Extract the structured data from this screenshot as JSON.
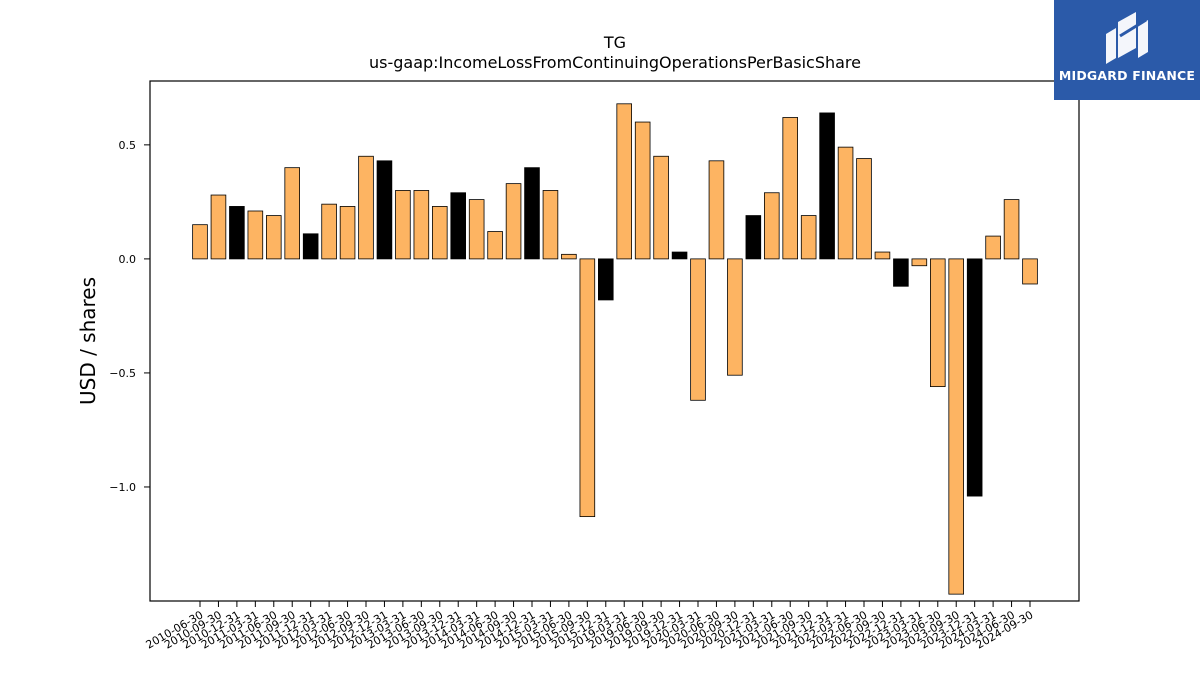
{
  "chart_data": {
    "type": "bar",
    "title": "TG",
    "subtitle": "us-gaap:IncomeLossFromContinuingOperationsPerBasicShare",
    "ylabel": "USD / shares",
    "xlabel": "",
    "ylim": [
      -1.5,
      0.78
    ],
    "yticks": [
      "0.5",
      "0.0",
      "−0.5",
      "−1.0"
    ],
    "ytick_values": [
      0.5,
      0.0,
      -0.5,
      -1.0
    ],
    "grid": false,
    "legend": "none",
    "colors": {
      "q": "#fdb462",
      "annual": "#000000",
      "edge": "#000000"
    },
    "categories": [
      "2010-06-30",
      "2010-09-30",
      "2010-12-31",
      "2011-03-31",
      "2011-06-30",
      "2011-09-30",
      "2011-12-31",
      "2012-03-31",
      "2012-06-30",
      "2012-09-30",
      "2012-12-31",
      "2013-03-31",
      "2013-06-30",
      "2013-09-30",
      "2013-12-31",
      "2014-03-31",
      "2014-06-30",
      "2014-09-30",
      "2014-12-31",
      "2015-03-31",
      "2015-06-30",
      "2015-09-30",
      "2015-12-31",
      "2019-03-31",
      "2019-06-30",
      "2019-09-30",
      "2019-12-31",
      "2020-03-31",
      "2020-06-30",
      "2020-09-30",
      "2020-12-31",
      "2021-03-31",
      "2021-06-30",
      "2021-09-30",
      "2021-12-31",
      "2022-03-31",
      "2022-06-30",
      "2022-09-30",
      "2022-12-31",
      "2023-03-31",
      "2023-06-30",
      "2023-09-30",
      "2023-12-31",
      "2024-03-31",
      "2024-06-30",
      "2024-09-30"
    ],
    "values": [
      0.15,
      0.28,
      0.23,
      0.21,
      0.19,
      0.4,
      0.11,
      0.24,
      0.23,
      0.45,
      0.43,
      0.3,
      0.3,
      0.23,
      0.29,
      0.26,
      0.12,
      0.33,
      0.4,
      0.3,
      0.02,
      -1.13,
      -0.18,
      0.68,
      0.6,
      0.45,
      0.03,
      -0.62,
      0.43,
      -0.51,
      0.19,
      0.29,
      0.62,
      0.19,
      0.64,
      0.49,
      0.44,
      0.03,
      -0.12,
      -0.03,
      -0.56,
      -1.47,
      -1.04,
      0.1,
      0.26,
      -0.11
    ],
    "annual_flags": [
      0,
      0,
      1,
      0,
      0,
      0,
      1,
      0,
      0,
      0,
      1,
      0,
      0,
      0,
      1,
      0,
      0,
      0,
      1,
      0,
      0,
      0,
      1,
      0,
      0,
      0,
      1,
      0,
      0,
      0,
      1,
      0,
      0,
      0,
      1,
      0,
      0,
      0,
      1,
      0,
      0,
      0,
      1,
      0,
      0,
      0
    ]
  },
  "logo": {
    "text": "MIDGARD FINANCE"
  }
}
